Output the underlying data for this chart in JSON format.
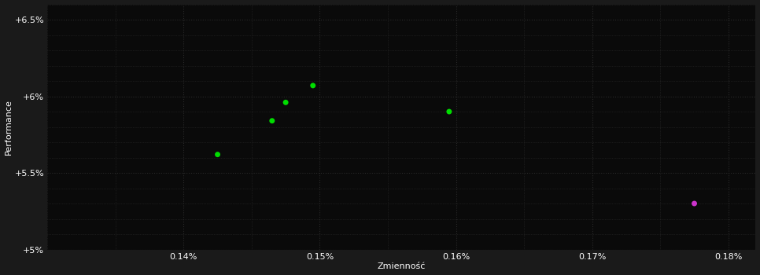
{
  "green_points": [
    [
      0.001425,
      5.62
    ],
    [
      0.001465,
      5.84
    ],
    [
      0.001475,
      5.96
    ],
    [
      0.001495,
      6.07
    ],
    [
      0.001595,
      5.9
    ]
  ],
  "magenta_points": [
    [
      0.001775,
      5.3
    ]
  ],
  "xlabel": "Zmienność",
  "ylabel": "Performance",
  "xlim": [
    0.0013,
    0.00182
  ],
  "ylim": [
    5.0,
    6.6
  ],
  "yticks": [
    5.0,
    5.5,
    6.0,
    6.5
  ],
  "ytick_labels": [
    "+5%",
    "+5.5%",
    "+6%",
    "+6.5%"
  ],
  "xticks": [
    0.0014,
    0.0015,
    0.0016,
    0.0017,
    0.0018
  ],
  "xtick_labels": [
    "0.14%",
    "0.15%",
    "0.16%",
    "0.17%",
    "0.18%"
  ],
  "background_color": "#1a1a1a",
  "plot_bg_color": "#0a0a0a",
  "grid_color": "#2a2a2a",
  "text_color": "#ffffff",
  "green_color": "#00dd00",
  "magenta_color": "#cc33cc",
  "marker_size": 5
}
